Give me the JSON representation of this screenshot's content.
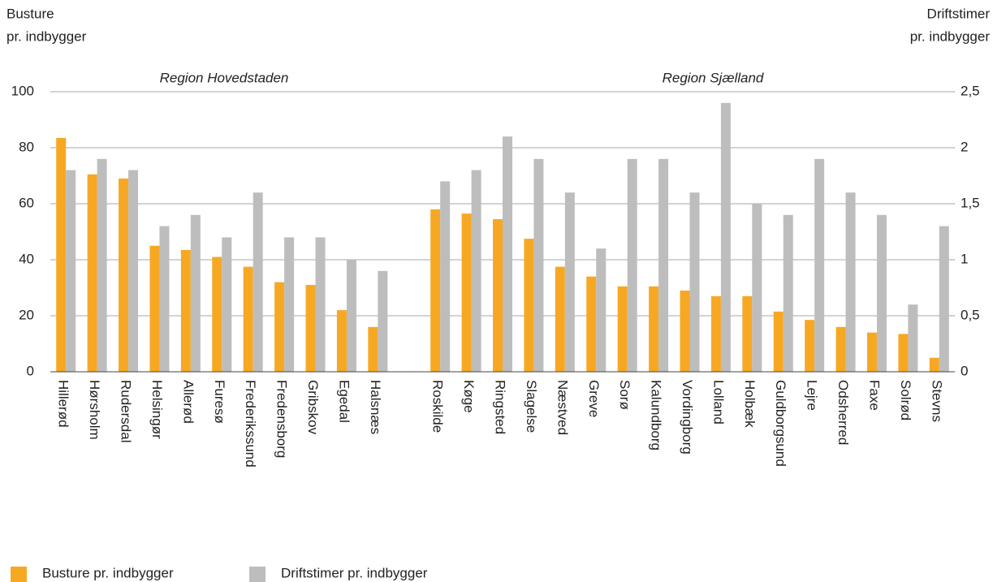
{
  "chart_data": {
    "type": "bar",
    "ylabel": [
      "Busture",
      "pr. indbygger"
    ],
    "y2label": [
      "Driftstimer",
      "pr. indbygger"
    ],
    "annotations": [
      "Region Hovedstaden",
      "Region Sjælland"
    ],
    "categories": [
      "Hillerød",
      "Hørsholm",
      "Rudersdal",
      "Helsingør",
      "Allerød",
      "Furesø",
      "Frederikssund",
      "Fredensborg",
      "Gribskov",
      "Egedal",
      "Halsnæs",
      null,
      "Roskilde",
      "Køge",
      "Ringsted",
      "Slagelse",
      "Næstved",
      "Greve",
      "Sorø",
      "Kalundborg",
      "Vordingborg",
      "Lolland",
      "Holbæk",
      "Guldborgsund",
      "Lejre",
      "Odsherred",
      "Faxe",
      "Solrød",
      "Stevns"
    ],
    "series": [
      {
        "name": "Busture pr. indbygger",
        "color": "#f7a823",
        "values": [
          83.5,
          70.5,
          69,
          45,
          43.5,
          41,
          37.5,
          32,
          31,
          22,
          16,
          null,
          58,
          56.5,
          54.5,
          47.5,
          37.5,
          34,
          30.5,
          30.5,
          29,
          27,
          27,
          21.5,
          18.5,
          16,
          14,
          13.5,
          5
        ]
      },
      {
        "name": "Driftstimer pr. indbygger",
        "color": "#bdbdbd",
        "axis": "y2",
        "values": [
          1.8,
          1.9,
          1.8,
          1.3,
          1.4,
          1.2,
          1.6,
          1.2,
          1.2,
          1.0,
          0.9,
          null,
          1.7,
          1.8,
          2.1,
          1.9,
          1.6,
          1.1,
          1.9,
          1.9,
          1.6,
          2.4,
          1.5,
          1.4,
          1.9,
          1.6,
          1.4,
          0.6,
          1.3
        ]
      }
    ],
    "ylim": [
      0,
      100
    ],
    "yticks": [
      0,
      20,
      40,
      60,
      80,
      100
    ],
    "y2lim": [
      0,
      2.5
    ],
    "y2ticks": [
      0,
      {
        "value": 0.5,
        "label": "0,5"
      },
      1,
      {
        "value": 1.5,
        "label": "1,5"
      },
      2,
      {
        "value": 2.5,
        "label": "2,5"
      }
    ],
    "grid": true
  }
}
